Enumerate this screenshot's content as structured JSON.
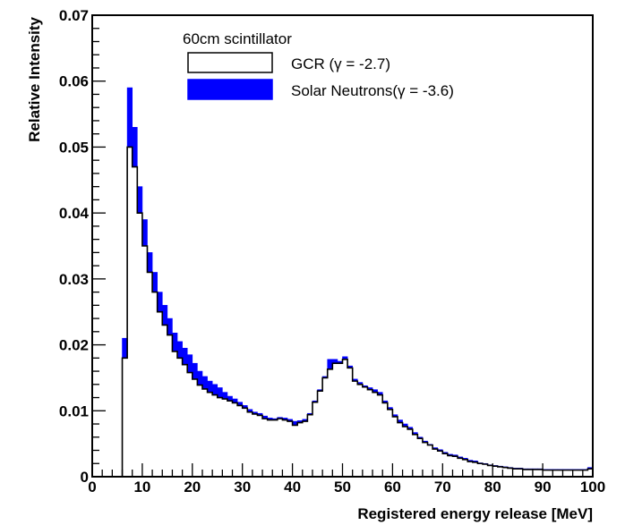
{
  "chart_data": {
    "type": "histogram",
    "xlabel": "Registered energy release [MeV]",
    "ylabel": "Relative Intensity",
    "xlim": [
      0,
      100
    ],
    "ylim": [
      0,
      0.07
    ],
    "x_ticks": [
      0,
      10,
      20,
      30,
      40,
      50,
      60,
      70,
      80,
      90,
      100
    ],
    "x_tick_labels": [
      "0",
      "10",
      "20",
      "30",
      "40",
      "50",
      "60",
      "70",
      "80",
      "90",
      "100"
    ],
    "y_ticks": [
      0,
      0.01,
      0.02,
      0.03,
      0.04,
      0.05,
      0.06,
      0.07
    ],
    "y_tick_labels": [
      "0",
      "0.01",
      "0.02",
      "0.03",
      "0.04",
      "0.05",
      "0.06",
      "0.07"
    ],
    "grid": false,
    "bin_width": 1,
    "bins_x": [
      6,
      7,
      8,
      9,
      10,
      11,
      12,
      13,
      14,
      15,
      16,
      17,
      18,
      19,
      20,
      21,
      22,
      23,
      24,
      25,
      26,
      27,
      28,
      29,
      30,
      31,
      32,
      33,
      34,
      35,
      36,
      37,
      38,
      39,
      40,
      41,
      42,
      43,
      44,
      45,
      46,
      47,
      48,
      49,
      50,
      51,
      52,
      53,
      54,
      55,
      56,
      57,
      58,
      59,
      60,
      61,
      62,
      63,
      64,
      65,
      66,
      67,
      68,
      69,
      70,
      71,
      72,
      73,
      74,
      75,
      76,
      77,
      78,
      79,
      80,
      81,
      82,
      83,
      84,
      85,
      86,
      87,
      88,
      89,
      90,
      91,
      92,
      93,
      94,
      95,
      96,
      97,
      98,
      99
    ],
    "legend": {
      "title": "60cm scintillator",
      "placement": "top-center",
      "entries": [
        {
          "label": "GCR (γ = -2.7)",
          "fill": "#ffffff",
          "edge": "#000000"
        },
        {
          "label": "Solar Neutrons(γ = -3.6)",
          "fill": "#0000ff",
          "edge": "#0000ff"
        }
      ]
    },
    "series": [
      {
        "name": "GCR (γ = -2.7)",
        "color": "#000000",
        "values": [
          0.018,
          0.05,
          0.047,
          0.04,
          0.035,
          0.031,
          0.028,
          0.025,
          0.023,
          0.0215,
          0.019,
          0.018,
          0.017,
          0.0158,
          0.0148,
          0.0139,
          0.0133,
          0.0128,
          0.0124,
          0.012,
          0.0118,
          0.0115,
          0.0112,
          0.0108,
          0.0104,
          0.0098,
          0.0095,
          0.0093,
          0.0088,
          0.0086,
          0.0086,
          0.0088,
          0.0086,
          0.0084,
          0.0078,
          0.0082,
          0.0084,
          0.0094,
          0.0113,
          0.013,
          0.015,
          0.0163,
          0.0172,
          0.0172,
          0.0178,
          0.0165,
          0.0145,
          0.014,
          0.0136,
          0.0132,
          0.0128,
          0.0124,
          0.0112,
          0.0102,
          0.0091,
          0.0082,
          0.0076,
          0.0072,
          0.0064,
          0.0058,
          0.0052,
          0.0048,
          0.0042,
          0.0039,
          0.0035,
          0.0032,
          0.0031,
          0.0028,
          0.0026,
          0.0023,
          0.0022,
          0.002,
          0.0019,
          0.0017,
          0.0016,
          0.0015,
          0.0014,
          0.0013,
          0.0012,
          0.0012,
          0.0011,
          0.0011,
          0.0011,
          0.0011,
          0.001,
          0.001,
          0.001,
          0.001,
          0.001,
          0.001,
          0.001,
          0.001,
          0.001,
          0.0012
        ]
      },
      {
        "name": "Solar Neutrons(γ = -3.6)",
        "color": "#0000ff",
        "values": [
          0.021,
          0.059,
          0.053,
          0.044,
          0.039,
          0.034,
          0.031,
          0.028,
          0.026,
          0.024,
          0.0218,
          0.0205,
          0.0195,
          0.0185,
          0.0172,
          0.016,
          0.0152,
          0.0145,
          0.014,
          0.0135,
          0.0128,
          0.0122,
          0.0118,
          0.0113,
          0.0108,
          0.0102,
          0.0098,
          0.0096,
          0.0092,
          0.0089,
          0.0088,
          0.009,
          0.0089,
          0.0087,
          0.0084,
          0.0085,
          0.0087,
          0.0096,
          0.0115,
          0.0132,
          0.0152,
          0.0178,
          0.0178,
          0.0175,
          0.0182,
          0.0168,
          0.0148,
          0.0143,
          0.0138,
          0.0135,
          0.0132,
          0.0128,
          0.0115,
          0.0105,
          0.0094,
          0.0086,
          0.008,
          0.0075,
          0.0067,
          0.006,
          0.0054,
          0.0049,
          0.0044,
          0.0041,
          0.0037,
          0.0034,
          0.0033,
          0.003,
          0.0028,
          0.0025,
          0.0024,
          0.0021,
          0.002,
          0.0018,
          0.0017,
          0.0016,
          0.0015,
          0.0014,
          0.0013,
          0.0013,
          0.0012,
          0.0012,
          0.0012,
          0.0012,
          0.0011,
          0.0011,
          0.0011,
          0.0011,
          0.0011,
          0.0011,
          0.0011,
          0.0011,
          0.0011,
          0.0014
        ]
      }
    ]
  }
}
